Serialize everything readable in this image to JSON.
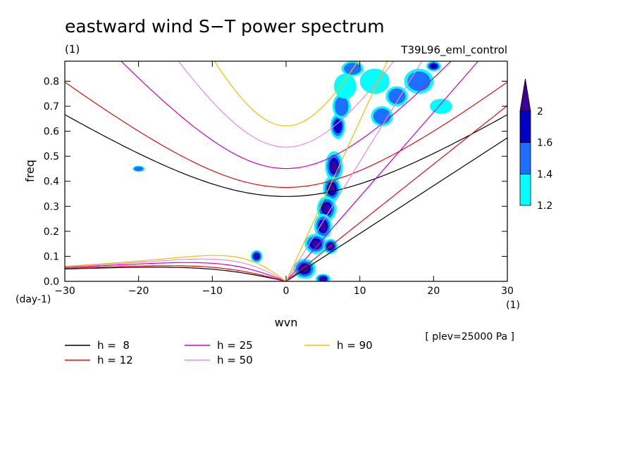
{
  "chart_data": {
    "type": "heatmap",
    "title": "eastward wind S−T power spectrum",
    "subtitle_left": "(1)",
    "subtitle_right": "T39L96_eml_control",
    "xlabel": "wvn",
    "ylabel": "freq",
    "x_unit": "(1)",
    "y_unit": "(day-1)",
    "note": "[ plev=25000 Pa ]",
    "xlim": [
      -30,
      30
    ],
    "ylim": [
      0,
      0.88
    ],
    "x_ticks": [
      -30,
      -20,
      -10,
      0,
      10,
      20,
      30
    ],
    "y_ticks": [
      0.0,
      0.1,
      0.2,
      0.3,
      0.4,
      0.5,
      0.6,
      0.7,
      0.8
    ],
    "colorbar": {
      "levels": [
        1.2,
        1.4,
        1.6,
        2
      ],
      "colors": [
        "#00ffff",
        "#1e6fff",
        "#0000c8",
        "#3c0096"
      ]
    },
    "dispersion_curves": [
      {
        "name": "h =  8",
        "h": 8,
        "color": "#000000"
      },
      {
        "name": "h = 12",
        "h": 12,
        "color": "#e01010"
      },
      {
        "name": "h = 25",
        "h": 25,
        "color": "#d000c0"
      },
      {
        "name": "h = 50",
        "h": 50,
        "color": "#e090e0"
      },
      {
        "name": "h = 90",
        "h": 90,
        "color": "#f0c000"
      }
    ],
    "spectrum_blobs": [
      {
        "x": 6.5,
        "y": 0.46,
        "rx": 1.2,
        "ry": 0.06,
        "level": 3
      },
      {
        "x": 6.2,
        "y": 0.37,
        "rx": 1.2,
        "ry": 0.05,
        "level": 3
      },
      {
        "x": 5.5,
        "y": 0.29,
        "rx": 1.3,
        "ry": 0.05,
        "level": 3
      },
      {
        "x": 5.0,
        "y": 0.22,
        "rx": 1.2,
        "ry": 0.05,
        "level": 3
      },
      {
        "x": 4.0,
        "y": 0.15,
        "rx": 1.5,
        "ry": 0.04,
        "level": 3
      },
      {
        "x": 6.0,
        "y": 0.14,
        "rx": 1.0,
        "ry": 0.03,
        "level": 3
      },
      {
        "x": 2.5,
        "y": 0.05,
        "rx": 1.5,
        "ry": 0.04,
        "level": 3
      },
      {
        "x": 5.0,
        "y": 0.01,
        "rx": 1.0,
        "ry": 0.02,
        "level": 3
      },
      {
        "x": -4.0,
        "y": 0.1,
        "rx": 0.8,
        "ry": 0.025,
        "level": 3
      },
      {
        "x": 7.0,
        "y": 0.62,
        "rx": 1.0,
        "ry": 0.05,
        "level": 2
      },
      {
        "x": 7.5,
        "y": 0.7,
        "rx": 1.2,
        "ry": 0.05,
        "level": 1
      },
      {
        "x": 8.0,
        "y": 0.78,
        "rx": 1.5,
        "ry": 0.05,
        "level": 0
      },
      {
        "x": 9.0,
        "y": 0.85,
        "rx": 1.5,
        "ry": 0.03,
        "level": 1
      },
      {
        "x": 12.0,
        "y": 0.8,
        "rx": 2.0,
        "ry": 0.05,
        "level": 0
      },
      {
        "x": 13.0,
        "y": 0.66,
        "rx": 1.5,
        "ry": 0.04,
        "level": 1
      },
      {
        "x": 15.0,
        "y": 0.74,
        "rx": 1.5,
        "ry": 0.04,
        "level": 1
      },
      {
        "x": 18.0,
        "y": 0.8,
        "rx": 2.0,
        "ry": 0.05,
        "level": 1
      },
      {
        "x": 20.0,
        "y": 0.86,
        "rx": 1.0,
        "ry": 0.02,
        "level": 2
      },
      {
        "x": 21.0,
        "y": 0.7,
        "rx": 1.5,
        "ry": 0.03,
        "level": 0
      },
      {
        "x": -20.0,
        "y": 0.45,
        "rx": 0.8,
        "ry": 0.012,
        "level": 1
      }
    ]
  }
}
